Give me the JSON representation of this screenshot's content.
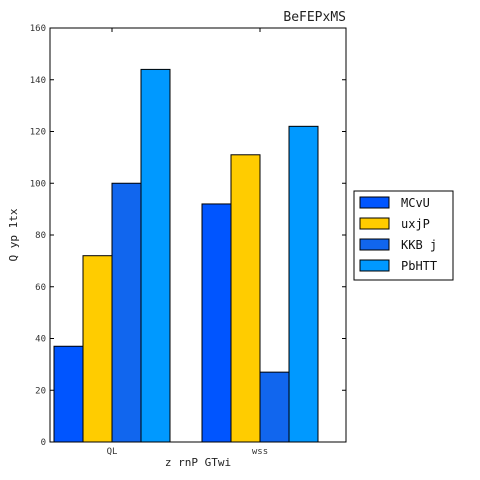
{
  "chart_data": {
    "type": "bar",
    "title": "BeFEPxMS",
    "xlabel": "z rnP GTwi",
    "ylabel": "Q yp 1tx",
    "categories": [
      "QL",
      "wss"
    ],
    "ylim": [
      0,
      160
    ],
    "yticks": [
      0,
      20,
      40,
      60,
      80,
      100,
      120,
      140,
      160
    ],
    "grid": false,
    "legend_position": "right",
    "series": [
      {
        "name": "MCvU",
        "color": "#0055ff",
        "values": [
          37,
          92
        ]
      },
      {
        "name": "uxjP",
        "color": "#ffcc00",
        "values": [
          72,
          111
        ]
      },
      {
        "name": "KKB j",
        "color": "#1166ee",
        "values": [
          100,
          27
        ]
      },
      {
        "name": "PbHTT",
        "color": "#0099ff",
        "values": [
          144,
          122
        ]
      }
    ]
  }
}
